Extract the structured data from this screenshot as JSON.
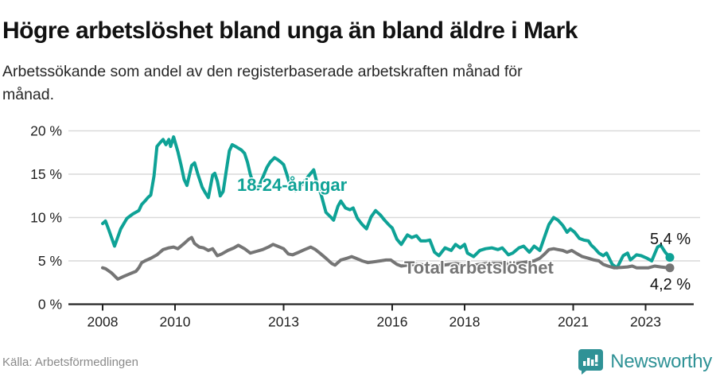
{
  "header": {
    "title": "Högre arbetslöshet bland unga än bland äldre i Mark",
    "subtitle": "Arbetssökande som andel av den registerbaserade arbetskraften månad för månad."
  },
  "footer": {
    "source": "Källa: Arbetsförmedlingen",
    "brand": "Newsworthy"
  },
  "colors": {
    "young": "#0ea296",
    "total": "#757575",
    "grid": "#d9d9d9",
    "axis": "#222222",
    "value_label": "#111111",
    "brand": "#2f9296"
  },
  "chart_data": {
    "type": "line",
    "title": "Högre arbetslöshet bland unga än bland äldre i Mark",
    "subtitle": "Arbetssökande som andel av den registerbaserade arbetskraften månad för månad.",
    "xlabel": "",
    "ylabel": "%",
    "xlim": [
      2007.7,
      2024.3
    ],
    "ylim": [
      0,
      20
    ],
    "grid": true,
    "yticks": [
      0,
      5,
      10,
      15,
      20
    ],
    "ytick_labels": [
      "0 %",
      "5 %",
      "10 %",
      "15 %",
      "20 %"
    ],
    "xticks": [
      2008,
      2010,
      2013,
      2016,
      2018,
      2021,
      2023
    ],
    "xtick_labels": [
      "2008",
      "2010",
      "2013",
      "2016",
      "2018",
      "2021",
      "2023"
    ],
    "series": [
      {
        "id": "young",
        "label": "18-24-åringar",
        "end_label": "5,4 %",
        "end_value": 5.4,
        "color": "#0ea296",
        "points": [
          [
            2008.0,
            9.3
          ],
          [
            2008.08,
            9.6
          ],
          [
            2008.17,
            8.6
          ],
          [
            2008.33,
            6.7
          ],
          [
            2008.5,
            8.7
          ],
          [
            2008.67,
            9.9
          ],
          [
            2008.83,
            10.4
          ],
          [
            2009.0,
            10.8
          ],
          [
            2009.08,
            11.5
          ],
          [
            2009.17,
            11.9
          ],
          [
            2009.25,
            12.3
          ],
          [
            2009.33,
            12.6
          ],
          [
            2009.42,
            14.8
          ],
          [
            2009.5,
            18.2
          ],
          [
            2009.58,
            18.6
          ],
          [
            2009.67,
            19.0
          ],
          [
            2009.75,
            18.4
          ],
          [
            2009.83,
            19.0
          ],
          [
            2009.88,
            18.2
          ],
          [
            2009.96,
            19.3
          ],
          [
            2010.08,
            17.6
          ],
          [
            2010.17,
            16.0
          ],
          [
            2010.25,
            14.4
          ],
          [
            2010.33,
            13.7
          ],
          [
            2010.46,
            16.0
          ],
          [
            2010.54,
            16.3
          ],
          [
            2010.63,
            15.0
          ],
          [
            2010.75,
            13.5
          ],
          [
            2010.83,
            12.9
          ],
          [
            2010.92,
            12.3
          ],
          [
            2011.04,
            14.9
          ],
          [
            2011.1,
            15.1
          ],
          [
            2011.17,
            14.2
          ],
          [
            2011.25,
            12.5
          ],
          [
            2011.33,
            13.0
          ],
          [
            2011.42,
            15.5
          ],
          [
            2011.5,
            17.7
          ],
          [
            2011.58,
            18.4
          ],
          [
            2011.67,
            18.2
          ],
          [
            2011.75,
            18.0
          ],
          [
            2011.83,
            17.8
          ],
          [
            2011.92,
            17.4
          ],
          [
            2012.0,
            16.4
          ],
          [
            2012.08,
            15.0
          ],
          [
            2012.17,
            13.8
          ],
          [
            2012.29,
            13.3
          ],
          [
            2012.42,
            14.6
          ],
          [
            2012.54,
            15.8
          ],
          [
            2012.63,
            16.4
          ],
          [
            2012.75,
            16.9
          ],
          [
            2012.83,
            16.7
          ],
          [
            2012.92,
            16.4
          ],
          [
            2013.0,
            16.1
          ],
          [
            2013.08,
            15.1
          ],
          [
            2013.17,
            13.9
          ],
          [
            2013.33,
            13.1
          ],
          [
            2013.5,
            13.8
          ],
          [
            2013.67,
            14.7
          ],
          [
            2013.83,
            15.5
          ],
          [
            2013.92,
            14.0
          ],
          [
            2014.04,
            12.6
          ],
          [
            2014.17,
            10.6
          ],
          [
            2014.29,
            10.1
          ],
          [
            2014.38,
            9.7
          ],
          [
            2014.5,
            11.3
          ],
          [
            2014.58,
            11.9
          ],
          [
            2014.71,
            11.1
          ],
          [
            2014.83,
            10.9
          ],
          [
            2014.92,
            11.1
          ],
          [
            2015.04,
            9.9
          ],
          [
            2015.17,
            9.2
          ],
          [
            2015.29,
            8.7
          ],
          [
            2015.42,
            10.1
          ],
          [
            2015.54,
            10.8
          ],
          [
            2015.67,
            10.3
          ],
          [
            2015.79,
            9.7
          ],
          [
            2015.92,
            9.1
          ],
          [
            2016.0,
            8.8
          ],
          [
            2016.13,
            7.5
          ],
          [
            2016.25,
            6.9
          ],
          [
            2016.42,
            8.0
          ],
          [
            2016.54,
            7.7
          ],
          [
            2016.67,
            7.9
          ],
          [
            2016.79,
            7.3
          ],
          [
            2016.92,
            7.3
          ],
          [
            2017.04,
            7.4
          ],
          [
            2017.17,
            6.0
          ],
          [
            2017.29,
            5.6
          ],
          [
            2017.46,
            6.5
          ],
          [
            2017.63,
            6.2
          ],
          [
            2017.75,
            6.9
          ],
          [
            2017.88,
            6.5
          ],
          [
            2018.0,
            6.9
          ],
          [
            2018.08,
            5.9
          ],
          [
            2018.25,
            5.5
          ],
          [
            2018.42,
            6.2
          ],
          [
            2018.58,
            6.4
          ],
          [
            2018.75,
            6.5
          ],
          [
            2018.92,
            6.3
          ],
          [
            2019.04,
            6.5
          ],
          [
            2019.21,
            5.7
          ],
          [
            2019.33,
            5.9
          ],
          [
            2019.5,
            6.5
          ],
          [
            2019.63,
            6.7
          ],
          [
            2019.79,
            6.0
          ],
          [
            2019.92,
            6.7
          ],
          [
            2020.08,
            6.2
          ],
          [
            2020.21,
            7.8
          ],
          [
            2020.33,
            9.2
          ],
          [
            2020.46,
            10.0
          ],
          [
            2020.58,
            9.7
          ],
          [
            2020.71,
            9.1
          ],
          [
            2020.83,
            8.3
          ],
          [
            2020.92,
            8.7
          ],
          [
            2021.04,
            8.3
          ],
          [
            2021.17,
            7.6
          ],
          [
            2021.29,
            7.4
          ],
          [
            2021.42,
            7.3
          ],
          [
            2021.5,
            6.8
          ],
          [
            2021.58,
            6.5
          ],
          [
            2021.71,
            5.9
          ],
          [
            2021.83,
            5.6
          ],
          [
            2021.92,
            5.9
          ],
          [
            2022.08,
            4.6
          ],
          [
            2022.21,
            4.2
          ],
          [
            2022.38,
            5.6
          ],
          [
            2022.5,
            5.9
          ],
          [
            2022.58,
            5.1
          ],
          [
            2022.75,
            5.7
          ],
          [
            2022.88,
            5.6
          ],
          [
            2023.04,
            5.3
          ],
          [
            2023.17,
            5.0
          ],
          [
            2023.33,
            6.6
          ],
          [
            2023.42,
            6.8
          ],
          [
            2023.54,
            6.0
          ],
          [
            2023.67,
            5.4
          ]
        ]
      },
      {
        "id": "total",
        "label": "Total arbetslöshet",
        "end_label": "4,2 %",
        "end_value": 4.2,
        "color": "#757575",
        "points": [
          [
            2008.0,
            4.2
          ],
          [
            2008.08,
            4.1
          ],
          [
            2008.25,
            3.6
          ],
          [
            2008.42,
            2.9
          ],
          [
            2008.58,
            3.2
          ],
          [
            2008.75,
            3.5
          ],
          [
            2008.92,
            3.8
          ],
          [
            2009.0,
            4.2
          ],
          [
            2009.08,
            4.8
          ],
          [
            2009.17,
            5.0
          ],
          [
            2009.33,
            5.3
          ],
          [
            2009.5,
            5.7
          ],
          [
            2009.67,
            6.3
          ],
          [
            2009.83,
            6.5
          ],
          [
            2009.96,
            6.6
          ],
          [
            2010.08,
            6.4
          ],
          [
            2010.25,
            7.0
          ],
          [
            2010.38,
            7.5
          ],
          [
            2010.46,
            7.7
          ],
          [
            2010.54,
            7.0
          ],
          [
            2010.67,
            6.6
          ],
          [
            2010.79,
            6.5
          ],
          [
            2010.92,
            6.2
          ],
          [
            2011.04,
            6.4
          ],
          [
            2011.17,
            5.6
          ],
          [
            2011.29,
            5.8
          ],
          [
            2011.46,
            6.2
          ],
          [
            2011.63,
            6.5
          ],
          [
            2011.75,
            6.8
          ],
          [
            2011.92,
            6.4
          ],
          [
            2012.08,
            5.9
          ],
          [
            2012.25,
            6.1
          ],
          [
            2012.42,
            6.3
          ],
          [
            2012.58,
            6.6
          ],
          [
            2012.71,
            6.9
          ],
          [
            2012.83,
            6.7
          ],
          [
            2013.0,
            6.4
          ],
          [
            2013.13,
            5.8
          ],
          [
            2013.25,
            5.7
          ],
          [
            2013.42,
            6.0
          ],
          [
            2013.58,
            6.3
          ],
          [
            2013.75,
            6.6
          ],
          [
            2013.88,
            6.3
          ],
          [
            2014.0,
            5.9
          ],
          [
            2014.17,
            5.3
          ],
          [
            2014.33,
            4.7
          ],
          [
            2014.42,
            4.5
          ],
          [
            2014.58,
            5.1
          ],
          [
            2014.75,
            5.3
          ],
          [
            2014.88,
            5.5
          ],
          [
            2015.0,
            5.3
          ],
          [
            2015.17,
            5.0
          ],
          [
            2015.33,
            4.8
          ],
          [
            2015.5,
            4.9
          ],
          [
            2015.67,
            5.0
          ],
          [
            2015.83,
            5.1
          ],
          [
            2015.96,
            5.1
          ],
          [
            2016.13,
            4.6
          ],
          [
            2016.25,
            4.4
          ],
          [
            2016.42,
            4.5
          ],
          [
            2016.58,
            4.6
          ],
          [
            2016.75,
            4.6
          ],
          [
            2016.92,
            4.5
          ],
          [
            2017.08,
            4.5
          ],
          [
            2017.25,
            4.4
          ],
          [
            2017.42,
            4.5
          ],
          [
            2017.58,
            4.6
          ],
          [
            2017.75,
            4.7
          ],
          [
            2017.92,
            4.6
          ],
          [
            2018.08,
            4.6
          ],
          [
            2018.25,
            4.5
          ],
          [
            2018.42,
            4.6
          ],
          [
            2018.58,
            4.7
          ],
          [
            2018.75,
            4.7
          ],
          [
            2018.92,
            4.7
          ],
          [
            2019.08,
            4.7
          ],
          [
            2019.25,
            4.6
          ],
          [
            2019.42,
            4.7
          ],
          [
            2019.58,
            4.8
          ],
          [
            2019.75,
            4.9
          ],
          [
            2019.92,
            5.0
          ],
          [
            2020.08,
            5.3
          ],
          [
            2020.21,
            5.8
          ],
          [
            2020.33,
            6.3
          ],
          [
            2020.46,
            6.4
          ],
          [
            2020.58,
            6.3
          ],
          [
            2020.71,
            6.2
          ],
          [
            2020.83,
            6.0
          ],
          [
            2020.96,
            6.2
          ],
          [
            2021.08,
            5.9
          ],
          [
            2021.25,
            5.5
          ],
          [
            2021.42,
            5.3
          ],
          [
            2021.58,
            5.1
          ],
          [
            2021.71,
            5.0
          ],
          [
            2021.83,
            4.6
          ],
          [
            2021.96,
            4.4
          ],
          [
            2022.13,
            4.2
          ],
          [
            2022.33,
            4.25
          ],
          [
            2022.5,
            4.3
          ],
          [
            2022.63,
            4.4
          ],
          [
            2022.75,
            4.2
          ],
          [
            2022.92,
            4.2
          ],
          [
            2023.08,
            4.2
          ],
          [
            2023.25,
            4.4
          ],
          [
            2023.42,
            4.3
          ],
          [
            2023.54,
            4.25
          ],
          [
            2023.67,
            4.2
          ]
        ]
      }
    ],
    "legend_position": "inline-labels"
  }
}
